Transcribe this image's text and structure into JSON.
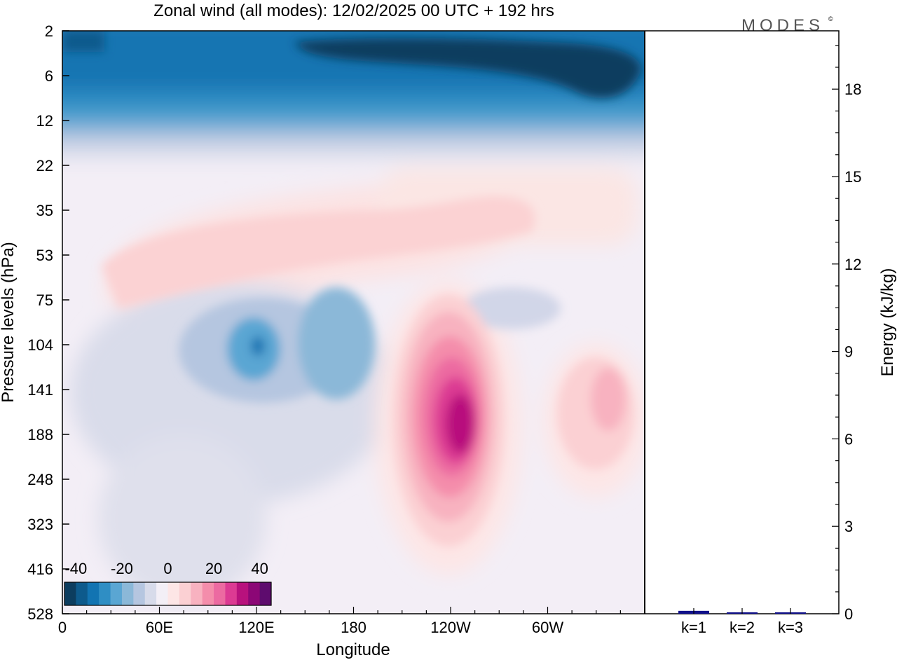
{
  "chart_data": [
    {
      "type": "heatmap",
      "title": "Zonal wind (all modes):  12/02/2025  00 UTC  + 192 hrs",
      "xlabel": "Longitude",
      "ylabel": "Pressure levels (hPa)",
      "x_ticks": [
        "0",
        "60E",
        "120E",
        "180",
        "120W",
        "60W"
      ],
      "x_tick_values": [
        0,
        60,
        120,
        180,
        240,
        300
      ],
      "xlim": [
        0,
        360
      ],
      "y_ticks": [
        "2",
        "6",
        "12",
        "22",
        "35",
        "53",
        "75",
        "104",
        "141",
        "188",
        "248",
        "323",
        "416",
        "528"
      ],
      "y_scale": "categorical pressure levels (top = 2 hPa, bottom = 528 hPa)",
      "colorbar": {
        "labels": [
          "-40",
          "-20",
          "0",
          "20",
          "40"
        ],
        "range": [
          -45,
          45
        ],
        "step": 5,
        "colors": [
          "#0c3d5f",
          "#0d5a8c",
          "#1274b2",
          "#2f8ec4",
          "#5aa6d3",
          "#8bb8d8",
          "#b5c6e0",
          "#d7dbea",
          "#f3eff6",
          "#fde6e6",
          "#fbd0d3",
          "#f8b2c0",
          "#f48dab",
          "#ec6aa1",
          "#dc3a93",
          "#b8117d",
          "#8c0776",
          "#5e0c6e"
        ]
      },
      "field_features": [
        {
          "feature": "strong easterlies, stratosphere",
          "lon_range": [
            0,
            360
          ],
          "pressure_range_hPa": [
            2,
            12
          ],
          "value": -40
        },
        {
          "feature": "weak westerly band",
          "lon_range": [
            30,
            300
          ],
          "pressure_range_hPa": [
            22,
            75
          ],
          "value": 8
        },
        {
          "feature": "easterly core",
          "lon_range": [
            100,
            180
          ],
          "pressure_range_hPa": [
            75,
            188
          ],
          "value": -28
        },
        {
          "feature": "westerly jet core",
          "lon_range": [
            195,
            270
          ],
          "pressure_range_hPa": [
            75,
            416
          ],
          "value": 40
        },
        {
          "feature": "secondary westerly maximum",
          "lon_range": [
            300,
            360
          ],
          "pressure_range_hPa": [
            104,
            248
          ],
          "value": 13
        }
      ],
      "grid": false
    },
    {
      "type": "bar",
      "categories": [
        "k=1",
        "k=2",
        "k=3"
      ],
      "values": [
        0.1,
        0.05,
        0.05
      ],
      "ylabel": "Energy (kJ/kg)",
      "y_ticks": [
        "0",
        "3",
        "6",
        "9",
        "12",
        "15",
        "18"
      ],
      "ylim": [
        0,
        20
      ],
      "bar_color": "#10108a"
    }
  ],
  "logo": {
    "text": "MODES",
    "mark": "©"
  }
}
